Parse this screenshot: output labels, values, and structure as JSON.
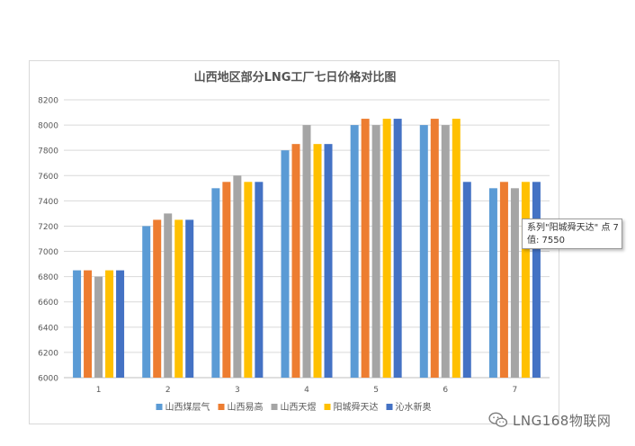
{
  "chart_data": {
    "type": "bar",
    "title": "山西地区部分LNG工厂七日价格对比图",
    "categories": [
      "1",
      "2",
      "3",
      "4",
      "5",
      "6",
      "7"
    ],
    "ylim": [
      6000,
      8200
    ],
    "yticks": [
      6000,
      6200,
      6400,
      6600,
      6800,
      7000,
      7200,
      7400,
      7600,
      7800,
      8000,
      8200
    ],
    "grid": true,
    "legend_position": "bottom",
    "series": [
      {
        "name": "山西煤层气",
        "color": "#5b9bd5",
        "values": [
          6850,
          7200,
          7500,
          7800,
          8000,
          8000,
          7500
        ]
      },
      {
        "name": "山西易高",
        "color": "#ed7d31",
        "values": [
          6850,
          7250,
          7550,
          7850,
          8050,
          8050,
          7550
        ]
      },
      {
        "name": "山西天煜",
        "color": "#a5a5a5",
        "values": [
          6800,
          7300,
          7600,
          8000,
          8000,
          8000,
          7500
        ]
      },
      {
        "name": "阳城舜天达",
        "color": "#ffc000",
        "values": [
          6850,
          7250,
          7550,
          7850,
          8050,
          8050,
          7550
        ]
      },
      {
        "name": "沁水新奥",
        "color": "#4472c4",
        "values": [
          6850,
          7250,
          7550,
          7850,
          8050,
          7550,
          7550
        ]
      }
    ]
  },
  "tooltip": {
    "line1": "系列\"阳城舜天达\" 点 7",
    "line2": "值: 7550"
  },
  "watermark": {
    "text": "LNG168物联网",
    "icon": "wechat-icon"
  }
}
